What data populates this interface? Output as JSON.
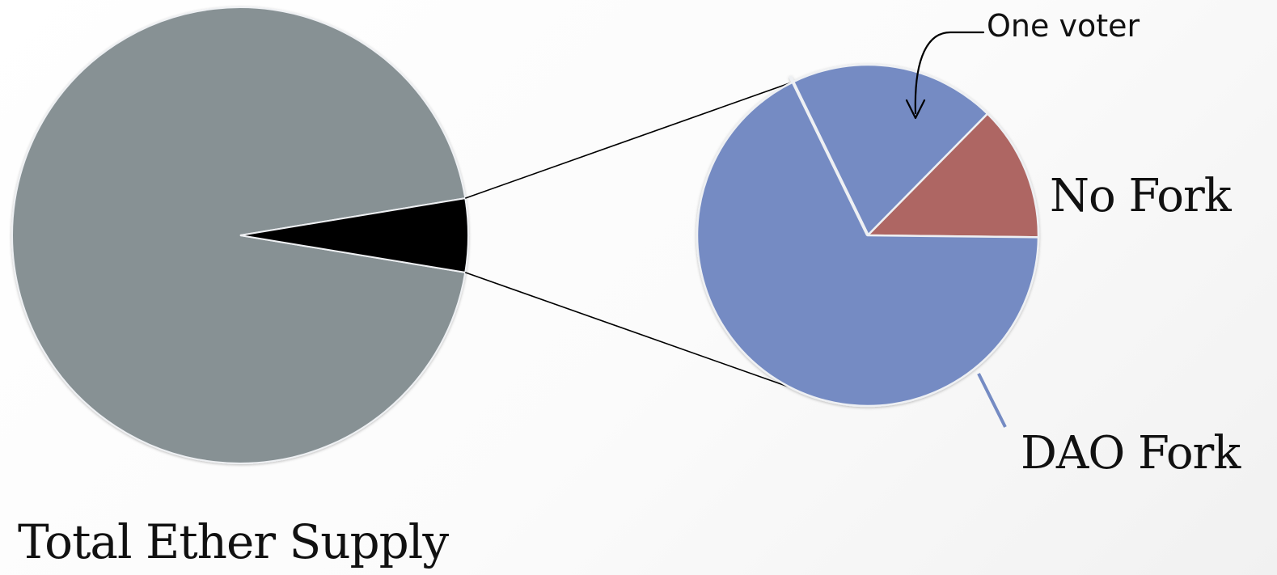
{
  "chart_data": [
    {
      "type": "pie",
      "title": "Total Ether Supply",
      "slices": [
        {
          "name": "",
          "value": 94.8,
          "color": "#879194"
        },
        {
          "name": "",
          "value": 5.2,
          "color": "#000000"
        }
      ]
    },
    {
      "type": "pie",
      "slices": [
        {
          "name": "One voter",
          "value": 19.6,
          "color": "#758bc3"
        },
        {
          "name": "No Fork",
          "value": 12.8,
          "color": "#ae6663"
        },
        {
          "name": "DAO Fork",
          "value": 67.6,
          "color": "#758bc3"
        }
      ]
    }
  ],
  "labels": {
    "total_supply": "Total Ether Supply",
    "no_fork": "No Fork",
    "dao_fork": "DAO Fork",
    "one_voter": "One voter"
  },
  "colors": {
    "background": "#fbfbfb",
    "connector": "#000000",
    "slice_edge": "#eef0f3",
    "leader_line": "#758bc3"
  }
}
